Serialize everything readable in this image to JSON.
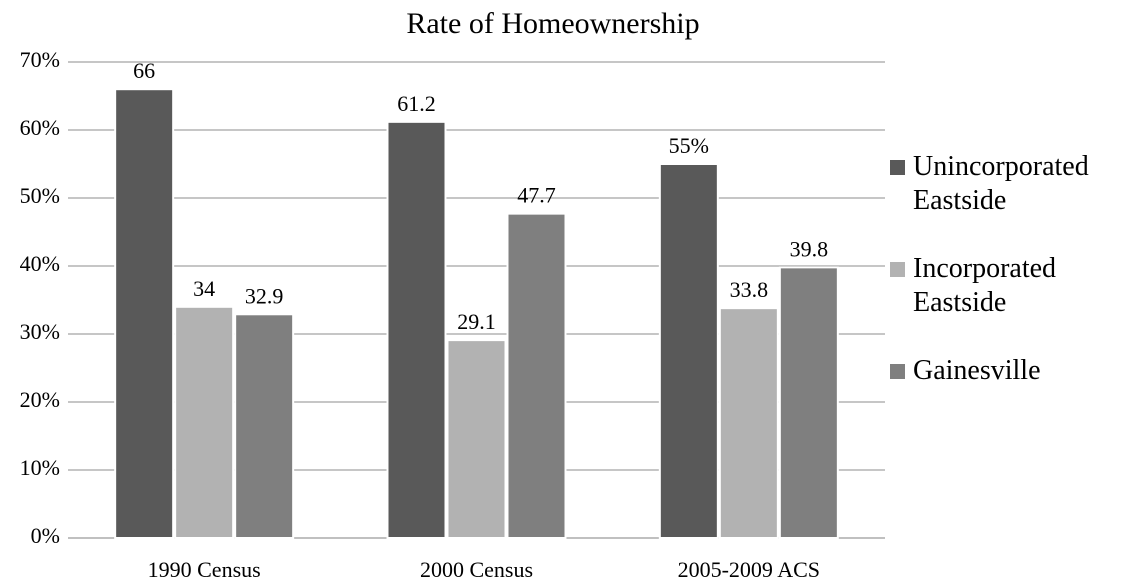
{
  "chart_data": {
    "type": "bar",
    "title": "Rate of Homeownership",
    "categories": [
      "1990 Census",
      "2000 Census",
      "2005-2009 ACS"
    ],
    "series": [
      {
        "name": "Unincorporated Eastside",
        "color": "#595959",
        "values": [
          66,
          61.2,
          55
        ],
        "value_labels": [
          "66",
          "61.2",
          "55%"
        ]
      },
      {
        "name": "Incorporated Eastside",
        "color": "#b2b2b2",
        "values": [
          34,
          29.1,
          33.8
        ]
      },
      {
        "name": "Gainesville",
        "color": "#7f7f7f",
        "values": [
          32.9,
          47.7,
          39.8
        ]
      }
    ],
    "ylim": [
      0,
      70
    ],
    "yticks": [
      {
        "value": 0,
        "label": "0%"
      },
      {
        "value": 10,
        "label": "10%"
      },
      {
        "value": 20,
        "label": "20%"
      },
      {
        "value": 30,
        "label": "30%"
      },
      {
        "value": 40,
        "label": "40%"
      },
      {
        "value": 50,
        "label": "50%"
      },
      {
        "value": 60,
        "label": "60%"
      },
      {
        "value": 70,
        "label": "70%"
      }
    ],
    "grid": true,
    "legend": "right"
  }
}
